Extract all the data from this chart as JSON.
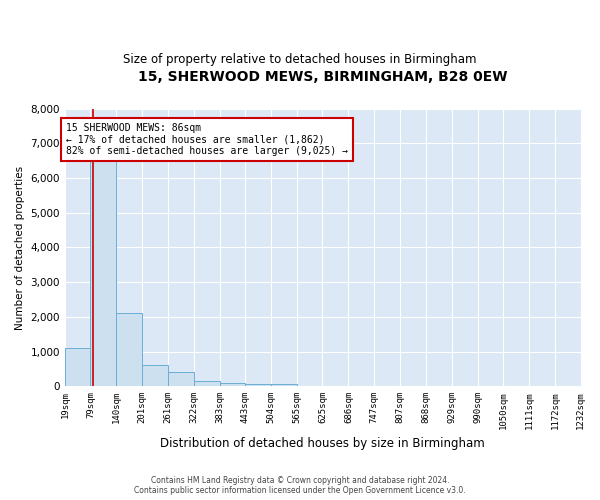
{
  "title1": "15, SHERWOOD MEWS, BIRMINGHAM, B28 0EW",
  "title2": "Size of property relative to detached houses in Birmingham",
  "xlabel": "Distribution of detached houses by size in Birmingham",
  "ylabel": "Number of detached properties",
  "property_size": 86,
  "annotation_line1": "15 SHERWOOD MEWS: 86sqm",
  "annotation_line2": "← 17% of detached houses are smaller (1,862)",
  "annotation_line3": "82% of semi-detached houses are larger (9,025) →",
  "footer1": "Contains HM Land Registry data © Crown copyright and database right 2024.",
  "footer2": "Contains public sector information licensed under the Open Government Licence v3.0.",
  "bar_edges": [
    19,
    79,
    140,
    201,
    261,
    322,
    383,
    443,
    504,
    565,
    625,
    686,
    747,
    807,
    868,
    929,
    990,
    1050,
    1111,
    1172,
    1232
  ],
  "bar_heights": [
    1100,
    6500,
    2100,
    600,
    400,
    150,
    100,
    50,
    50,
    10,
    10,
    0,
    0,
    0,
    0,
    0,
    0,
    0,
    0,
    0
  ],
  "bar_color": "#cce0f0",
  "bar_edge_color": "#6baed6",
  "vline_color": "#cc0000",
  "vline_x": 86,
  "annotation_box_color": "#cc0000",
  "background_color": "#dce8f5",
  "grid_color": "#ffffff",
  "ylim": [
    0,
    8000
  ],
  "yticks": [
    0,
    1000,
    2000,
    3000,
    4000,
    5000,
    6000,
    7000,
    8000
  ]
}
